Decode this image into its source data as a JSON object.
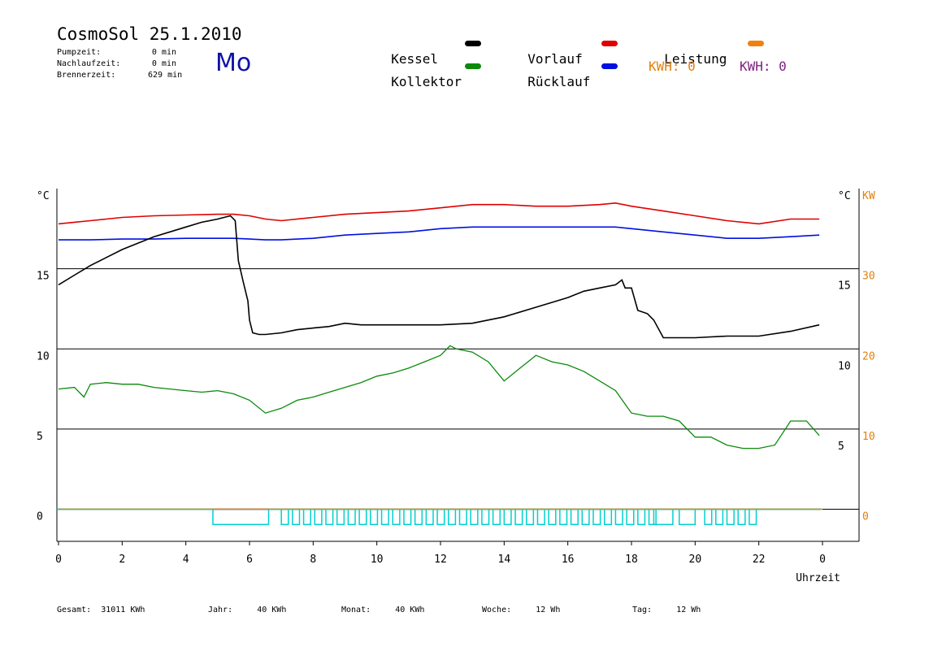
{
  "header": {
    "title": "CosmoSol 25.1.2010",
    "day": "Mo",
    "stats": [
      {
        "label": "Pumpzeit:",
        "value": "0 min"
      },
      {
        "label": "Nachlaufzeit:",
        "value": "0 min"
      },
      {
        "label": "Brennerzeit:",
        "value": "629 min"
      }
    ]
  },
  "legend": [
    {
      "name": "Kessel",
      "color": "#000000"
    },
    {
      "name": "Vorlauf",
      "color": "#e00000"
    },
    {
      "name": "Leistung",
      "color": "#f08010"
    },
    {
      "name": "Kollektor",
      "color": "#0a8a0a"
    },
    {
      "name": "Rücklauf",
      "color": "#0010e0"
    }
  ],
  "kwh": [
    {
      "label": "KWH: 0",
      "color": "#e08010"
    },
    {
      "label": "KWH: 0",
      "color": "#802080"
    }
  ],
  "footer": [
    {
      "label": "Gesamt:",
      "value": "31011 KWh"
    },
    {
      "label": "Jahr:",
      "value": "40 KWh"
    },
    {
      "label": "Monat:",
      "value": "40 KWh"
    },
    {
      "label": "Woche:",
      "value": "12 Wh"
    },
    {
      "label": "Tag:",
      "value": "12 Wh"
    }
  ],
  "chart_data": {
    "type": "line",
    "xlabel": "Uhrzeit",
    "xlim": [
      0,
      24
    ],
    "x_tick_labels": [
      "0",
      "2",
      "4",
      "6",
      "8",
      "10",
      "12",
      "14",
      "16",
      "18",
      "20",
      "22",
      "0"
    ],
    "left_axis": {
      "unit": "°C",
      "ticks": [
        0,
        5,
        10,
        15
      ],
      "ylim": [
        -2,
        20
      ]
    },
    "right_axis_temp": {
      "unit": "°C",
      "ticks": [
        5,
        10,
        15
      ]
    },
    "right_axis_power": {
      "unit": "KW",
      "ticks": [
        0,
        10,
        20,
        30
      ],
      "color": "#e08010"
    },
    "grid": "horizontal",
    "series": [
      {
        "name": "Vorlauf",
        "color": "#e00000",
        "unit": "°C",
        "x": [
          0,
          0.5,
          1,
          1.5,
          2,
          3,
          4,
          5,
          5.5,
          6,
          6.5,
          7,
          8,
          9,
          10,
          11,
          12,
          13,
          14,
          15,
          16,
          17,
          17.5,
          18,
          19,
          20,
          21,
          22,
          23,
          23.9
        ],
        "y": [
          17.8,
          17.9,
          18.0,
          18.1,
          18.2,
          18.3,
          18.35,
          18.4,
          18.4,
          18.3,
          18.1,
          18.0,
          18.2,
          18.4,
          18.5,
          18.6,
          18.8,
          19.0,
          19.0,
          18.9,
          18.9,
          19.0,
          19.1,
          18.9,
          18.6,
          18.3,
          18.0,
          17.8,
          18.1,
          18.1
        ]
      },
      {
        "name": "Rücklauf",
        "color": "#0010e0",
        "unit": "°C",
        "x": [
          0,
          1,
          2,
          3,
          4,
          5,
          5.5,
          6,
          6.5,
          7,
          8,
          9,
          10,
          11,
          12,
          13,
          14,
          15,
          16,
          17,
          17.5,
          18,
          19,
          20,
          21,
          22,
          23,
          23.9
        ],
        "y": [
          16.8,
          16.8,
          16.85,
          16.85,
          16.9,
          16.9,
          16.9,
          16.85,
          16.8,
          16.8,
          16.9,
          17.1,
          17.2,
          17.3,
          17.5,
          17.6,
          17.6,
          17.6,
          17.6,
          17.6,
          17.6,
          17.5,
          17.3,
          17.1,
          16.9,
          16.9,
          17.0,
          17.1
        ]
      },
      {
        "name": "Kessel",
        "color": "#000000",
        "unit": "°C",
        "x": [
          0,
          0.5,
          1,
          1.5,
          2,
          2.5,
          3,
          3.5,
          4,
          4.5,
          5,
          5.4,
          5.55,
          5.65,
          5.8,
          5.95,
          6,
          6.1,
          6.3,
          6.5,
          7,
          7.5,
          8,
          8.5,
          9,
          9.5,
          10,
          11,
          12,
          13,
          14,
          15,
          16,
          16.5,
          17,
          17.5,
          17.7,
          17.8,
          18,
          18.2,
          18.5,
          18.7,
          19,
          19.5,
          20,
          21,
          22,
          23,
          23.9
        ],
        "y": [
          14.0,
          14.6,
          15.2,
          15.7,
          16.2,
          16.6,
          17.0,
          17.3,
          17.6,
          17.9,
          18.1,
          18.3,
          18.0,
          15.5,
          14.2,
          13.0,
          11.8,
          11.0,
          10.9,
          10.9,
          11.0,
          11.2,
          11.3,
          11.4,
          11.6,
          11.5,
          11.5,
          11.5,
          11.5,
          11.6,
          12.0,
          12.6,
          13.2,
          13.6,
          13.8,
          14.0,
          14.3,
          13.8,
          13.8,
          12.4,
          12.2,
          11.8,
          10.7,
          10.7,
          10.7,
          10.8,
          10.8,
          11.1,
          11.5
        ]
      },
      {
        "name": "Kollektor",
        "color": "#0a8a0a",
        "unit": "°C",
        "x": [
          0,
          0.5,
          0.8,
          1,
          1.5,
          2,
          2.5,
          3,
          3.5,
          4,
          4.5,
          5,
          5.5,
          6,
          6.5,
          7,
          7.5,
          8,
          8.5,
          9,
          9.5,
          10,
          10.5,
          11,
          11.5,
          12,
          12.3,
          12.5,
          13,
          13.5,
          14,
          14.5,
          15,
          15.5,
          16,
          16.5,
          17,
          17.5,
          18,
          18.5,
          19,
          19.5,
          20,
          20.5,
          21,
          21.5,
          22,
          22.5,
          23,
          23.5,
          23.9
        ],
        "y": [
          7.5,
          7.6,
          7.0,
          7.8,
          7.9,
          7.8,
          7.8,
          7.6,
          7.5,
          7.4,
          7.3,
          7.4,
          7.2,
          6.8,
          6.0,
          6.3,
          6.8,
          7.0,
          7.3,
          7.6,
          7.9,
          8.3,
          8.5,
          8.8,
          9.2,
          9.6,
          10.2,
          10.0,
          9.8,
          9.2,
          8.0,
          8.8,
          9.6,
          9.2,
          9.0,
          8.6,
          8.0,
          7.4,
          6.0,
          5.8,
          5.8,
          5.5,
          4.5,
          4.5,
          4.0,
          3.8,
          3.8,
          4.0,
          5.5,
          5.5,
          4.6
        ]
      },
      {
        "name": "Leistung",
        "color": "#f08010",
        "unit": "KW",
        "x": [
          0,
          24
        ],
        "y": [
          0,
          0
        ]
      }
    ],
    "burner_band": {
      "color": "#00d0d0",
      "start": 4.85,
      "end": 21.8,
      "solid_blocks": [
        [
          4.85,
          6.6
        ],
        [
          18.7,
          19.3
        ],
        [
          19.5,
          20.0
        ]
      ]
    }
  }
}
